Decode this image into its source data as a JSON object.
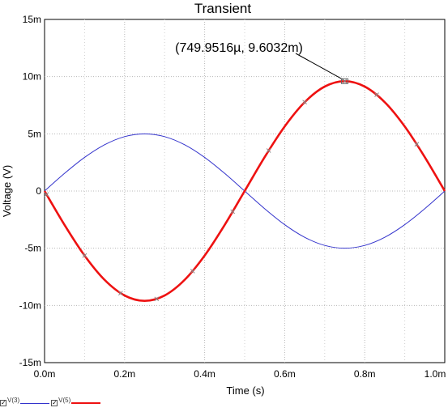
{
  "chart_data": {
    "type": "line",
    "title": "Transient",
    "xlabel": "Time (s)",
    "ylabel": "Voltage (V)",
    "xlim": [
      0,
      0.001
    ],
    "ylim": [
      -0.015,
      0.015
    ],
    "grid": true,
    "x_ticks": [
      {
        "value": 0,
        "label": "0.0m"
      },
      {
        "value": 0.0002,
        "label": "0.2m"
      },
      {
        "value": 0.0004,
        "label": "0.4m"
      },
      {
        "value": 0.0006,
        "label": "0.6m"
      },
      {
        "value": 0.0008,
        "label": "0.8m"
      },
      {
        "value": 0.001,
        "label": "1.0m"
      }
    ],
    "y_ticks": [
      {
        "value": 0.015,
        "label": "15m"
      },
      {
        "value": 0.01,
        "label": "10m"
      },
      {
        "value": 0.005,
        "label": "5m"
      },
      {
        "value": 0,
        "label": "0"
      },
      {
        "value": -0.005,
        "label": "-5m"
      },
      {
        "value": -0.01,
        "label": "-10m"
      },
      {
        "value": -0.015,
        "label": "-15m"
      }
    ],
    "series": [
      {
        "name": "V(3)",
        "color": "#3333cc",
        "x": [
          0,
          5e-05,
          0.0001,
          0.00015,
          0.0002,
          0.00025,
          0.0003,
          0.00035,
          0.0004,
          0.00045,
          0.0005,
          0.00055,
          0.0006,
          0.00065,
          0.0007,
          0.00075,
          0.0008,
          0.00085,
          0.0009,
          0.00095,
          0.001
        ],
        "y": [
          0,
          0.001545,
          0.002939,
          0.004045,
          0.004755,
          0.005,
          0.004755,
          0.004045,
          0.002939,
          0.001545,
          0,
          -0.001545,
          -0.002939,
          -0.004045,
          -0.004755,
          -0.005,
          -0.004755,
          -0.004045,
          -0.002939,
          -0.001545,
          0
        ]
      },
      {
        "name": "V(5)",
        "color": "#ee1111",
        "x": [
          0,
          5e-05,
          0.0001,
          0.00015,
          0.0002,
          0.00025,
          0.0003,
          0.00035,
          0.0004,
          0.00045,
          0.0005,
          0.00055,
          0.0006,
          0.00065,
          0.0007,
          0.00075,
          0.0008,
          0.00085,
          0.0009,
          0.00095,
          0.001
        ],
        "y": [
          0,
          -0.002967,
          -0.005643,
          -0.007766,
          -0.00913,
          -0.0096,
          -0.00913,
          -0.007766,
          -0.005643,
          -0.002967,
          0,
          0.002967,
          0.005643,
          0.007766,
          0.00913,
          0.0096032,
          0.00913,
          0.007766,
          0.005643,
          0.002967,
          0
        ]
      }
    ],
    "markers": {
      "series": "V(5)",
      "x": [
        5e-06,
        0.0001,
        0.00019,
        0.00028,
        0.00037,
        0.00047,
        0.00056,
        0.00065,
        0.00075,
        0.00083,
        0.00093
      ]
    },
    "annotation": {
      "text": "(749.9516µ, 9.6032m)",
      "x": 0.0007499516,
      "y": 0.0096032
    },
    "legend_position": "bottom-left"
  }
}
